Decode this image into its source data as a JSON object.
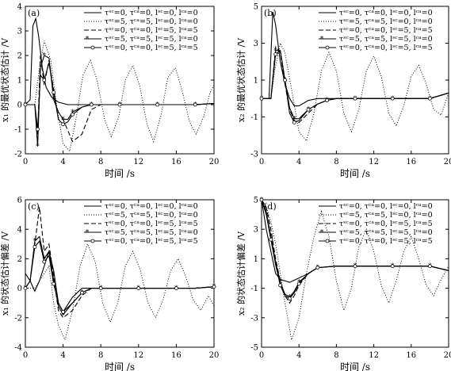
{
  "chart_data": [
    {
      "type": "line",
      "panel_label": "(a)",
      "xlabel": "时间 /s",
      "ylabel": "x₁ 的最优状态估计 /V",
      "xlim": [
        0,
        20
      ],
      "ylim": [
        -2,
        4
      ],
      "xticks": [
        0,
        4,
        8,
        12,
        16,
        20
      ],
      "yticks": [
        -2,
        -1,
        0,
        1,
        2,
        3,
        4
      ],
      "grid": false,
      "legend_position": "top-right",
      "series": [
        {
          "name": "τˢᶜ=0, τᶜᵃ=0, lˢᶜ=0, lᶜᵃ=0",
          "style": "solid",
          "marker": "none",
          "x": [
            0,
            0.5,
            0.8,
            1.1,
            1.4,
            1.8,
            2.2,
            2.8,
            3.5,
            4.5,
            6,
            8,
            10,
            12,
            14,
            16,
            18,
            20
          ],
          "y": [
            0,
            0.2,
            3.2,
            3.5,
            2.8,
            1.5,
            0.7,
            0.3,
            0.1,
            0,
            0,
            0,
            0,
            0,
            0,
            0,
            0,
            0.05
          ]
        },
        {
          "name": "τˢᶜ=5, τᶜᵃ=5, lˢᶜ=0, lᶜᵃ=0",
          "style": "dotted",
          "marker": "none",
          "x": [
            0,
            1,
            1.5,
            2,
            2.7,
            3.3,
            4,
            4.7,
            5.4,
            6.1,
            6.9,
            7.6,
            8.4,
            9.1,
            9.9,
            10.6,
            11.4,
            12.1,
            12.9,
            13.6,
            14.4,
            15.1,
            15.9,
            16.6,
            17.4,
            18.1,
            18.9,
            19.6,
            20
          ],
          "y": [
            0,
            0,
            1.5,
            2.6,
            1.8,
            0,
            -1.6,
            -1.9,
            -0.5,
            1.2,
            1.8,
            1.0,
            -0.6,
            -1.3,
            -0.5,
            1.0,
            1.6,
            0.8,
            -0.8,
            -1.5,
            -0.4,
            1.1,
            1.5,
            0.6,
            -0.7,
            -1.2,
            -0.5,
            0.5,
            0.8
          ]
        },
        {
          "name": "τˢᶜ=0, τᶜᵃ=0, lˢᶜ=5, lᶜᵃ=5",
          "style": "dashed",
          "marker": "none",
          "x": [
            0,
            1,
            1.3,
            1.6,
            2,
            2.5,
            3,
            3.5,
            4,
            5,
            6,
            7,
            8,
            10,
            12,
            14,
            16,
            18,
            20
          ],
          "y": [
            0,
            0,
            -1.2,
            2.0,
            0.8,
            1.8,
            0.6,
            -0.6,
            -0.6,
            -1.5,
            -1.2,
            -0.2,
            0,
            0,
            0,
            0,
            0,
            0,
            0.05
          ]
        },
        {
          "name": "τˢᶜ=5, τᶜᵃ=5, lˢᶜ=5, lᶜᵃ=0",
          "style": "solid",
          "marker": "asterisk",
          "x": [
            0,
            1,
            1.3,
            1.6,
            2,
            2.5,
            3,
            3.5,
            4,
            4.5,
            5,
            6,
            7,
            8,
            10,
            12,
            14,
            16,
            18,
            20
          ],
          "y": [
            0,
            0,
            -1.7,
            1.5,
            2.0,
            1.9,
            0.2,
            -0.3,
            -0.6,
            -0.6,
            -0.3,
            -0.1,
            0,
            0,
            0,
            0,
            0,
            0,
            0,
            0.05
          ]
        },
        {
          "name": "τˢᶜ=0, τᶜᵃ=0, lˢᶜ=5, lᶜᵃ=5",
          "style": "solid",
          "marker": "circle",
          "x": [
            0,
            1,
            1.3,
            1.6,
            2,
            2.5,
            3,
            3.5,
            4,
            4.5,
            5,
            6,
            7,
            8,
            10,
            12,
            14,
            16,
            18,
            20
          ],
          "y": [
            0,
            0,
            -1.0,
            1.2,
            1.0,
            1.7,
            0.5,
            -0.6,
            -0.8,
            -0.7,
            -0.4,
            -0.1,
            0,
            0,
            0,
            0,
            0,
            0,
            0,
            0.05
          ]
        }
      ]
    },
    {
      "type": "line",
      "panel_label": "(b)",
      "xlabel": "时间 /s",
      "ylabel": "x₂ 的最优状态估计 /V",
      "xlim": [
        0,
        20
      ],
      "ylim": [
        -3,
        5
      ],
      "xticks": [
        0,
        4,
        8,
        12,
        16,
        20
      ],
      "yticks": [
        -3,
        -1,
        1,
        3,
        5
      ],
      "grid": false,
      "legend_position": "top-right",
      "series": [
        {
          "name": "τˢᶜ=0, τᶜᵃ=0, lˢᶜ=0, lᶜᵃ=0",
          "style": "solid",
          "marker": "none",
          "x": [
            0,
            0.8,
            1.2,
            1.5,
            2,
            2.5,
            3,
            3.5,
            4,
            5,
            6,
            8,
            10,
            12,
            14,
            16,
            18,
            20
          ],
          "y": [
            0,
            0,
            4.7,
            4.0,
            2.0,
            0.8,
            0,
            -0.4,
            -0.4,
            -0.1,
            0,
            0,
            0,
            0,
            0,
            0,
            0,
            0.3
          ]
        },
        {
          "name": "τˢᶜ=5, τᶜᵃ=5, lˢᶜ=0, lᶜᵃ=0",
          "style": "dotted",
          "marker": "none",
          "x": [
            0,
            1,
            1.4,
            2,
            2.5,
            3.2,
            4,
            4.8,
            5.6,
            6.4,
            7.2,
            8,
            8.8,
            9.6,
            10.4,
            11.2,
            12,
            12.8,
            13.6,
            14.4,
            15.2,
            16,
            16.8,
            17.6,
            18.4,
            19.2,
            20
          ],
          "y": [
            0,
            0,
            1.5,
            3.0,
            2.5,
            0.5,
            -1.8,
            -2.3,
            -0.8,
            1.5,
            2.5,
            1.5,
            -0.8,
            -1.8,
            -0.6,
            1.5,
            2.3,
            1.2,
            -0.8,
            -1.5,
            -0.4,
            1.2,
            1.8,
            0.8,
            -0.6,
            -0.9,
            0.3
          ]
        },
        {
          "name": "τˢᶜ=0, τᶜᵃ=0, lˢᶜ=5, lᶜᵃ=5",
          "style": "dashed",
          "marker": "none",
          "x": [
            0,
            1,
            1.5,
            2,
            2.5,
            3,
            3.5,
            4,
            5,
            6,
            7,
            8,
            10,
            12,
            14,
            16,
            18,
            20
          ],
          "y": [
            0,
            0,
            2.8,
            2.5,
            0.8,
            -0.6,
            -1.2,
            -1.3,
            -0.8,
            -0.3,
            -0.1,
            0,
            0,
            0,
            0,
            0,
            0,
            0.3
          ]
        },
        {
          "name": "τˢᶜ=5, τᶜᵃ=5, lˢᶜ=5, lᶜᵃ=0",
          "style": "solid",
          "marker": "asterisk",
          "x": [
            0,
            1,
            1.5,
            2,
            2.5,
            3,
            3.5,
            4,
            5,
            6,
            7,
            8,
            10,
            12,
            14,
            16,
            18,
            20
          ],
          "y": [
            0,
            0,
            2.6,
            2.6,
            1.0,
            -0.5,
            -1.1,
            -1.1,
            -0.6,
            -0.3,
            -0.1,
            0,
            0,
            0,
            0,
            0,
            0,
            0.3
          ]
        },
        {
          "name": "τˢᶜ=0, τᶜᵃ=0, lˢᶜ=5, lᶜᵃ=5",
          "style": "solid",
          "marker": "circle",
          "x": [
            0,
            1,
            1.5,
            2,
            2.5,
            3,
            3.5,
            4,
            5,
            6,
            7,
            8,
            10,
            12,
            14,
            16,
            18,
            20
          ],
          "y": [
            0,
            0,
            2.4,
            2.6,
            1.0,
            -0.8,
            -1.3,
            -1.2,
            -0.6,
            -0.3,
            -0.1,
            0,
            0,
            0,
            0,
            0,
            0,
            0.3
          ]
        }
      ]
    },
    {
      "type": "line",
      "panel_label": "(c)",
      "xlabel": "时间 /s",
      "ylabel": "x₁ 的状态估计偏差 /V",
      "xlim": [
        0,
        20
      ],
      "ylim": [
        -4,
        6
      ],
      "xticks": [
        0,
        4,
        8,
        12,
        16,
        20
      ],
      "yticks": [
        -4,
        -2,
        0,
        2,
        4,
        6
      ],
      "grid": false,
      "legend_position": "top-right",
      "series": [
        {
          "name": "τˢᶜ=0, τᶜᵃ=0, lˢᶜ=0, lᶜᵃ=0",
          "style": "solid",
          "marker": "none",
          "x": [
            0,
            0.5,
            1,
            1.5,
            2,
            2.5,
            3,
            3.5,
            4,
            5,
            6,
            8,
            10,
            12,
            14,
            16,
            18,
            20
          ],
          "y": [
            1,
            0.5,
            -0.2,
            0.5,
            1.5,
            2.5,
            1.2,
            -1.0,
            -1.6,
            -0.6,
            0,
            0,
            0,
            0,
            0,
            0,
            0,
            0.1
          ]
        },
        {
          "name": "τˢᶜ=5, τᶜᵃ=5, lˢᶜ=0, lᶜᵃ=0",
          "style": "dotted",
          "marker": "none",
          "x": [
            0,
            1,
            2,
            2.5,
            3,
            3.5,
            4.2,
            5,
            5.8,
            6.6,
            7.4,
            8.2,
            9,
            9.8,
            10.6,
            11.4,
            12.2,
            13,
            13.8,
            14.6,
            15.4,
            16.2,
            17,
            17.8,
            18.6,
            19.4,
            20
          ],
          "y": [
            0,
            0,
            1.0,
            1.5,
            -1.0,
            -2.5,
            -3.5,
            -1.5,
            1.5,
            3.0,
            1.8,
            -1.0,
            -2.3,
            -1.0,
            1.5,
            2.5,
            1.2,
            -1.0,
            -2.0,
            -0.8,
            1.2,
            2.0,
            0.8,
            -0.8,
            -1.5,
            -0.5,
            -1.2
          ]
        },
        {
          "name": "τˢᶜ=0, τᶜᵃ=0, lˢᶜ=5, lᶜᵃ=5",
          "style": "dashed",
          "marker": "none",
          "x": [
            0,
            0.5,
            1,
            1.5,
            2,
            2.5,
            3,
            3.5,
            4,
            5,
            6,
            7,
            8,
            10,
            12,
            14,
            16,
            18,
            20
          ],
          "y": [
            0,
            0.5,
            3.0,
            5.5,
            2.5,
            3.0,
            0.8,
            -1.5,
            -2.0,
            -1.5,
            -0.5,
            0,
            0,
            0,
            0,
            0,
            0,
            0,
            0.1
          ]
        },
        {
          "name": "τˢᶜ=5, τᶜᵃ=5, lˢᶜ=5, lᶜᵃ=0",
          "style": "solid",
          "marker": "asterisk",
          "x": [
            0,
            0.5,
            1,
            1.5,
            2,
            2.5,
            3,
            3.5,
            4,
            5,
            6,
            7,
            8,
            10,
            12,
            14,
            16,
            18,
            20
          ],
          "y": [
            0,
            0.5,
            3.2,
            3.5,
            2.0,
            2.5,
            0.5,
            -1.2,
            -1.8,
            -1.0,
            -0.3,
            0,
            0,
            0,
            0,
            0,
            0,
            0,
            0.1
          ]
        },
        {
          "name": "τˢᶜ=0, τᶜᵃ=0, lˢᶜ=5, lᶜᵃ=5",
          "style": "solid",
          "marker": "circle",
          "x": [
            0,
            0.5,
            1,
            1.5,
            2,
            2.5,
            3,
            3.5,
            4,
            5,
            6,
            7,
            8,
            10,
            12,
            14,
            16,
            18,
            20
          ],
          "y": [
            0,
            0.5,
            2.8,
            3.2,
            1.8,
            2.2,
            0.3,
            -1.0,
            -1.6,
            -1.0,
            -0.3,
            0,
            0,
            0,
            0,
            0,
            0,
            0,
            0.1
          ]
        }
      ]
    },
    {
      "type": "line",
      "panel_label": "(d)",
      "xlabel": "时间 /s",
      "ylabel": "x₂ 的状态估计偏差 /V",
      "xlim": [
        0,
        20
      ],
      "ylim": [
        -5,
        5
      ],
      "xticks": [
        0,
        4,
        8,
        12,
        16,
        20
      ],
      "yticks": [
        -5,
        -3,
        -1,
        1,
        3,
        5
      ],
      "grid": false,
      "legend_position": "top-right",
      "series": [
        {
          "name": "τˢᶜ=0, τᶜᵃ=0, lˢᶜ=0, lᶜᵃ=0",
          "style": "solid",
          "marker": "none",
          "x": [
            0,
            0.5,
            1,
            1.5,
            2,
            3,
            4,
            5,
            6,
            8,
            10,
            12,
            14,
            16,
            18,
            20
          ],
          "y": [
            5,
            3,
            1.5,
            0,
            -0.4,
            -0.6,
            -0.3,
            0,
            0.4,
            0.5,
            0.5,
            0.5,
            0.5,
            0.5,
            0.5,
            0.2
          ]
        },
        {
          "name": "τˢᶜ=5, τᶜᵃ=5, lˢᶜ=0, lᶜᵃ=0",
          "style": "dotted",
          "marker": "none",
          "x": [
            0,
            0.5,
            1,
            1.5,
            2,
            2.5,
            3.2,
            4,
            4.8,
            5.6,
            6.4,
            7.2,
            8,
            8.8,
            9.6,
            10.4,
            11.2,
            12,
            12.8,
            13.6,
            14.4,
            15.2,
            16,
            16.8,
            17.6,
            18.4,
            19.2,
            20
          ],
          "y": [
            5,
            4.5,
            3.5,
            2,
            0,
            -2,
            -4.5,
            -3,
            0,
            2.5,
            4.2,
            2.5,
            -0.5,
            -2.5,
            -1.0,
            1.8,
            3.0,
            1.5,
            -0.8,
            -2.0,
            -0.5,
            1.5,
            2.5,
            1.0,
            -0.8,
            -1.5,
            -0.4,
            0.5
          ]
        },
        {
          "name": "τˢᶜ=0, τᶜᵃ=0, lˢᶜ=5, lᶜᵃ=5",
          "style": "dashed",
          "marker": "none",
          "x": [
            0,
            0.5,
            1,
            1.5,
            2,
            2.5,
            3,
            3.5,
            4,
            5,
            6,
            8,
            10,
            12,
            14,
            16,
            18,
            20
          ],
          "y": [
            5,
            4.5,
            3.0,
            1.0,
            -0.5,
            -1.5,
            -2.0,
            -1.5,
            -0.8,
            0,
            0.4,
            0.5,
            0.5,
            0.5,
            0.5,
            0.5,
            0.5,
            0.2
          ]
        },
        {
          "name": "τˢᶜ=5, τᶜᵃ=5, lˢᶜ=5, lᶜᵃ=0",
          "style": "solid",
          "marker": "asterisk",
          "x": [
            0,
            0.5,
            1,
            1.5,
            2,
            2.5,
            3,
            3.5,
            4,
            5,
            6,
            8,
            10,
            12,
            14,
            16,
            18,
            20
          ],
          "y": [
            5,
            4.2,
            2.5,
            0.8,
            -0.6,
            -1.4,
            -1.6,
            -1.2,
            -0.6,
            0,
            0.4,
            0.5,
            0.5,
            0.5,
            0.5,
            0.5,
            0.5,
            0.2
          ]
        },
        {
          "name": "τˢᶜ=0, τᶜᵃ=0, lˢᶜ=5, lᶜᵃ=5",
          "style": "solid",
          "marker": "circle",
          "x": [
            0,
            0.5,
            1,
            1.5,
            2,
            2.5,
            3,
            3.5,
            4,
            5,
            6,
            8,
            10,
            12,
            14,
            16,
            18,
            20
          ],
          "y": [
            5,
            4.0,
            2.3,
            0.6,
            -0.8,
            -1.5,
            -1.7,
            -1.3,
            -0.7,
            0,
            0.4,
            0.5,
            0.5,
            0.5,
            0.5,
            0.5,
            0.5,
            0.2
          ]
        }
      ]
    }
  ]
}
